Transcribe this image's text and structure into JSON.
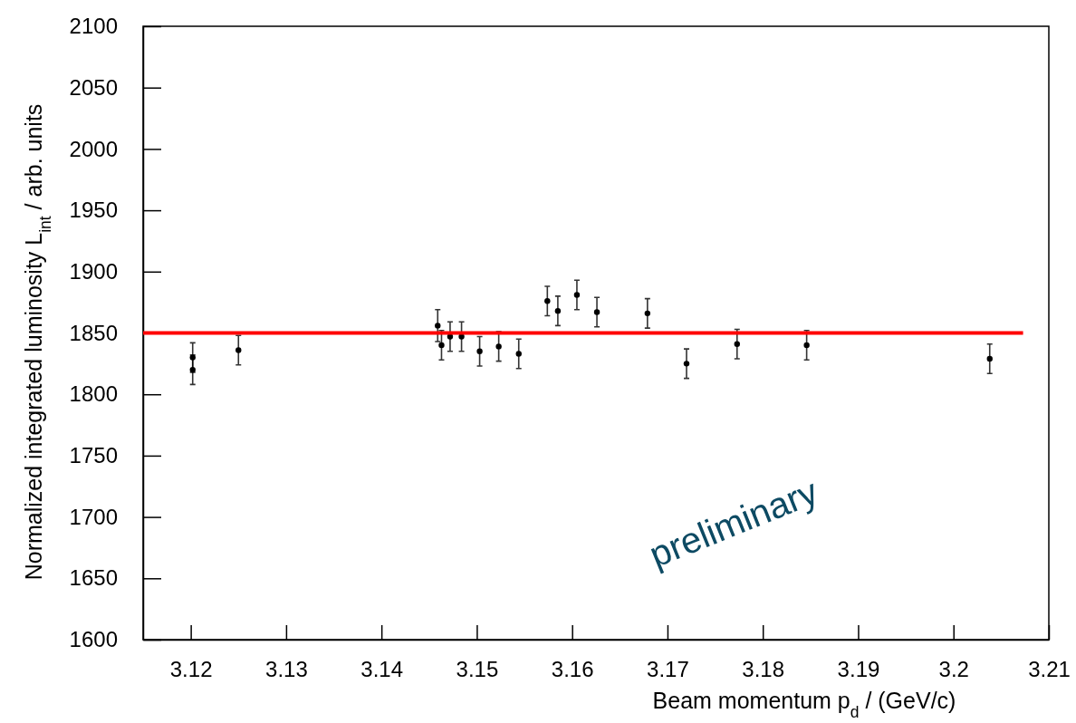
{
  "chart_data": {
    "type": "scatter",
    "xlabel": "Beam momentum p$_{d}$ / (GeV/c)",
    "ylabel": "Normalized integrated luminosity L$_{int}$ / arb. units",
    "xlim": [
      3.115,
      3.21
    ],
    "xticks": [
      3.12,
      3.13,
      3.14,
      3.15,
      3.16,
      3.17,
      3.18,
      3.19,
      {
        "value": 3.2,
        "label": "3.2"
      },
      3.21
    ],
    "ylim": [
      1600,
      2100
    ],
    "yticks": [
      1600,
      1650,
      1700,
      1750,
      1800,
      1850,
      1900,
      1950,
      2000,
      2050,
      2100
    ],
    "grid": false,
    "marker": "circle",
    "series": [
      {
        "color": "#000000",
        "x": [
          3.1202,
          3.1202,
          3.125,
          3.1459,
          3.1463,
          3.1472,
          3.1484,
          3.1503,
          3.1523,
          3.1544,
          3.1574,
          3.1585,
          3.1605,
          3.1626,
          3.1679,
          3.172,
          3.1773,
          3.1846,
          3.2038
        ],
        "values": [
          1830,
          1820,
          1836,
          1856,
          1840,
          1847,
          1847,
          1835,
          1839,
          1833,
          1876,
          1868,
          1881,
          1867,
          1866,
          1825,
          1841,
          1840,
          1829
        ],
        "errors": [
          12,
          12,
          12,
          13,
          12,
          12,
          12,
          12,
          12,
          12,
          12,
          12,
          12,
          12,
          12,
          12,
          12,
          12,
          12
        ]
      },
      {
        "type": "line",
        "color": "#ff0000",
        "x": [
          3.115,
          3.2073
        ],
        "values": [
          1850,
          1850
        ],
        "line_style": "solid",
        "marker": "none"
      }
    ],
    "annotations": [
      "preliminary"
    ]
  }
}
